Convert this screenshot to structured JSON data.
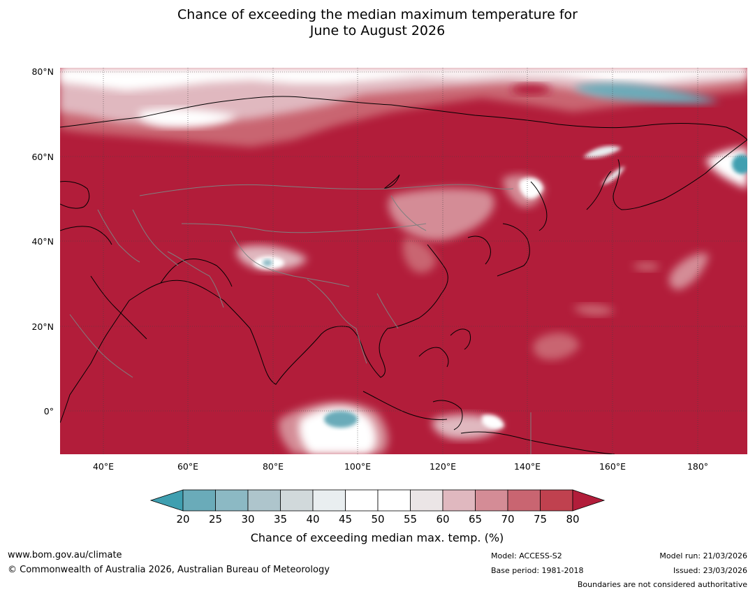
{
  "title": {
    "line1": "Chance of exceeding the median maximum temperature for",
    "line2": "June to August 2026"
  },
  "map": {
    "lat_labels": [
      "80°N",
      "60°N",
      "40°N",
      "20°N",
      "0°"
    ],
    "lat_values": [
      80,
      60,
      40,
      20,
      0
    ],
    "lon_labels": [
      "40°E",
      "60°E",
      "80°E",
      "100°E",
      "120°E",
      "140°E",
      "160°E",
      "180°"
    ],
    "lon_values": [
      40,
      60,
      80,
      100,
      120,
      140,
      160,
      180
    ],
    "lon_range": [
      30,
      191
    ],
    "lat_range": [
      -10,
      81
    ],
    "dominant_value": "80+",
    "colors": {
      "base": "#b21d3a",
      "land_coast": "#000000",
      "borders": "#808080"
    }
  },
  "colorbar": {
    "title": "Chance of exceeding median max. temp. (%)",
    "ticks": [
      "20",
      "25",
      "30",
      "35",
      "40",
      "45",
      "50",
      "55",
      "60",
      "65",
      "70",
      "75",
      "80"
    ],
    "colors": [
      "#3f9fb0",
      "#6aabb9",
      "#8cb9c4",
      "#aec5cc",
      "#d1d9db",
      "#e9eef0",
      "#ffffff",
      "#ffffff",
      "#ebe5e6",
      "#e0b8bf",
      "#d48c96",
      "#c96571",
      "#c0414f",
      "#b21d3a"
    ]
  },
  "footer": {
    "website": "www.bom.gov.au/climate",
    "copyright": "© Commonwealth of Australia 2026, Australian Bureau of Meteorology",
    "model": "Model: ACCESS-S2",
    "base_period": "Base period: 1981-2018",
    "model_run": "Model run: 21/03/2026",
    "issued": "Issued: 23/03/2026",
    "disclaimer": "Boundaries are not considered authoritative"
  }
}
